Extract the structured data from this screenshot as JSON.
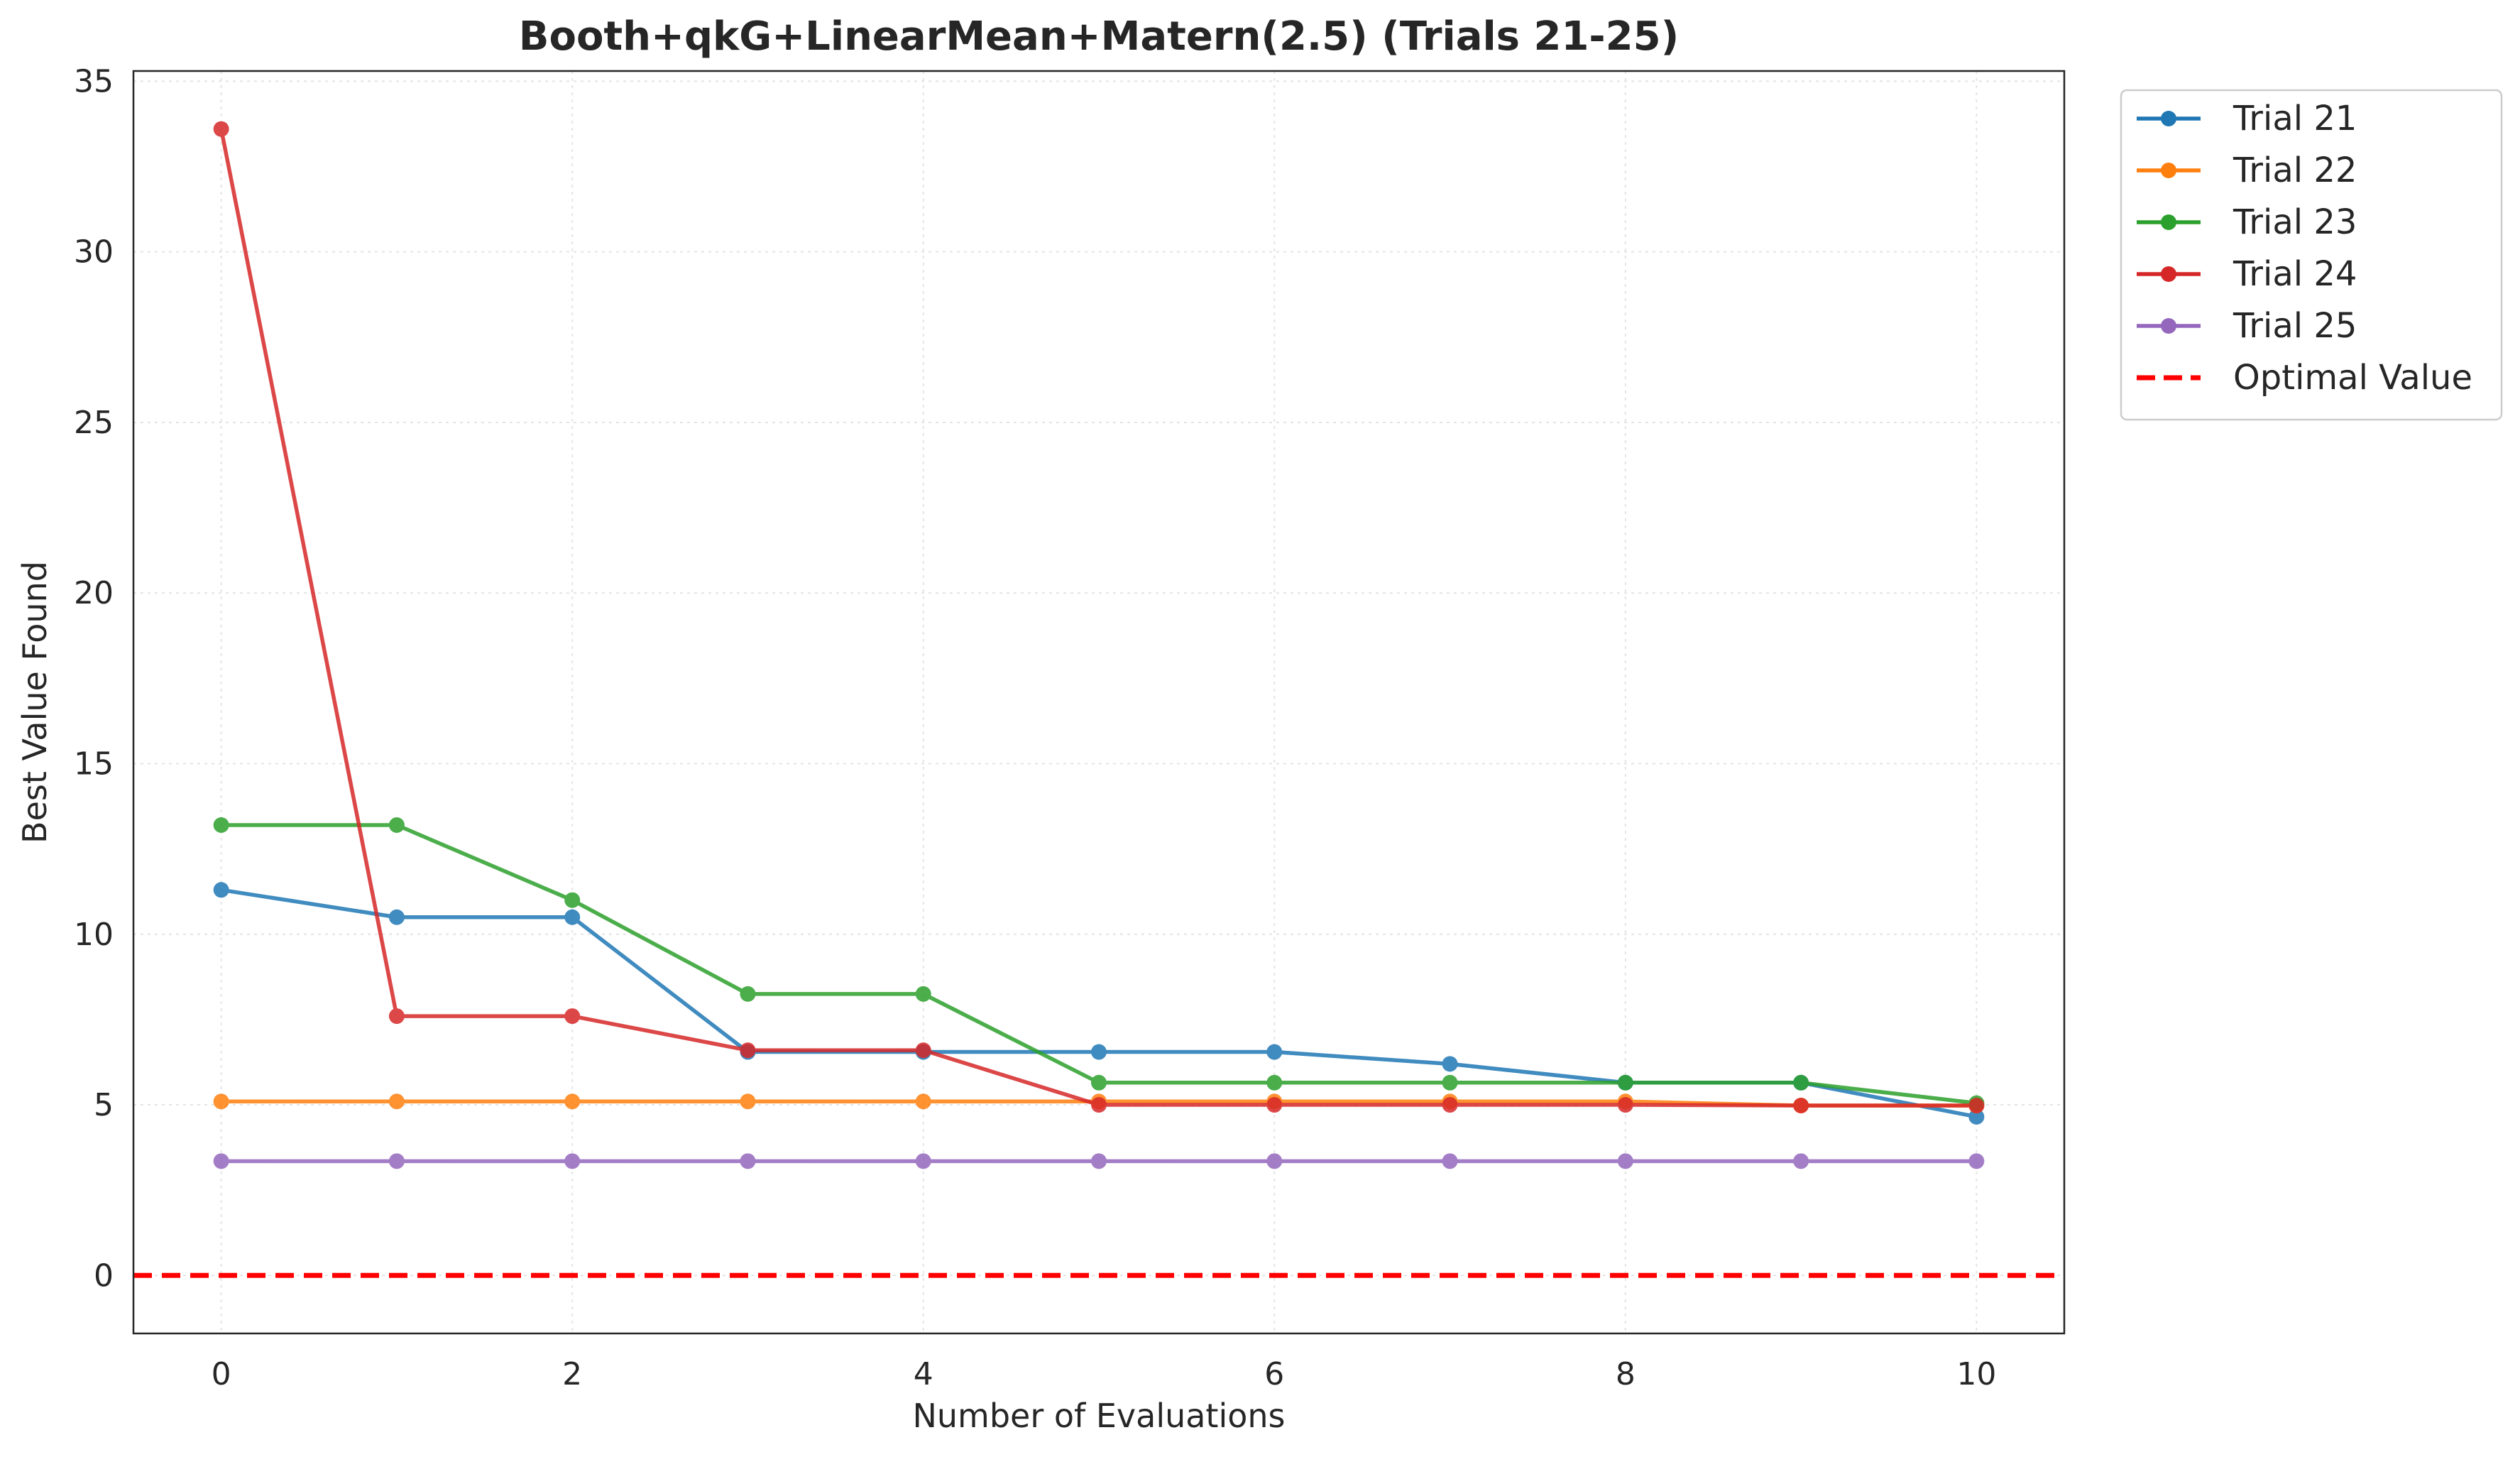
{
  "chart_data": {
    "type": "line",
    "title": "Booth+qkG+LinearMean+Matern(2.5) (Trials 21-25)",
    "xlabel": "Number of Evaluations",
    "ylabel": "Best Value Found",
    "xlim": [
      -0.5,
      10.5
    ],
    "ylim": [
      -1.7,
      35.3
    ],
    "xticks": [
      0,
      2,
      4,
      6,
      8,
      10
    ],
    "yticks": [
      0,
      5,
      10,
      15,
      20,
      25,
      30,
      35
    ],
    "grid": true,
    "legend_position": "outside-top-right",
    "x": [
      0,
      1,
      2,
      3,
      4,
      5,
      6,
      7,
      8,
      9,
      10
    ],
    "series": [
      {
        "name": "Trial 21",
        "color": "#1f77b4",
        "values": [
          11.3,
          10.5,
          10.5,
          6.55,
          6.55,
          6.55,
          6.55,
          6.2,
          5.65,
          5.65,
          4.65
        ]
      },
      {
        "name": "Trial 22",
        "color": "#ff7f0e",
        "values": [
          5.1,
          5.1,
          5.1,
          5.1,
          5.1,
          5.1,
          5.1,
          5.1,
          5.1,
          4.98,
          4.98
        ]
      },
      {
        "name": "Trial 23",
        "color": "#2ca02c",
        "values": [
          13.2,
          13.2,
          11.0,
          8.25,
          8.25,
          5.65,
          5.65,
          5.65,
          5.65,
          5.65,
          5.05
        ]
      },
      {
        "name": "Trial 24",
        "color": "#d62728",
        "values": [
          33.6,
          7.6,
          7.6,
          6.6,
          6.6,
          5.0,
          5.0,
          5.0,
          5.0,
          4.98,
          4.98
        ]
      },
      {
        "name": "Trial 25",
        "color": "#9467bd",
        "values": [
          3.35,
          3.35,
          3.35,
          3.35,
          3.35,
          3.35,
          3.35,
          3.35,
          3.35,
          3.35,
          3.35
        ]
      }
    ],
    "reference_line": {
      "name": "Optimal Value",
      "y": 0,
      "color": "#ff0000",
      "style": "dashed"
    }
  }
}
